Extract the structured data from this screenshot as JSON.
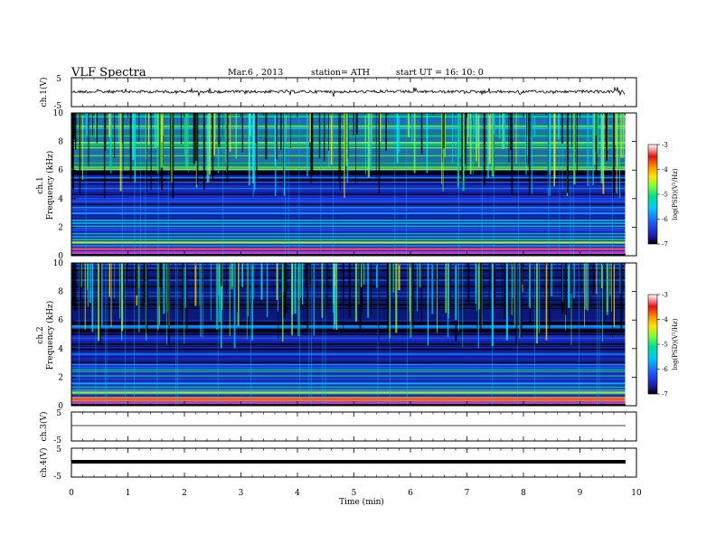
{
  "header": {
    "title": "VLF  Spectra",
    "date": "Mar.6  , 2013",
    "station": "station= ATH",
    "start": "start  UT  =   16: 10: 0"
  },
  "chart_data": [
    {
      "type": "line",
      "panel": "ch1-waveform",
      "ylabel": "ch.1(V)",
      "y_ticks": [
        "5",
        "-5"
      ],
      "ylim": [
        -5,
        5
      ],
      "approx_level": 0,
      "x_unit": "min"
    },
    {
      "type": "heatmap",
      "panel": "ch1-spectrogram",
      "ylabel_channel": "ch.1",
      "ylabel": "Frequency  (kHz)",
      "y_ticks": [
        "0",
        "2",
        "4",
        "6",
        "8",
        "10"
      ],
      "ylim": [
        0,
        10
      ],
      "xlim": [
        0,
        9.8
      ],
      "colorbar": {
        "label": "log(PSD)(V²/Hz)",
        "ticks": [
          "-3",
          "-4",
          "-5",
          "-6",
          "-7"
        ],
        "range": [
          -7,
          -3
        ],
        "colors": [
          "#000000",
          "#1a1ab0",
          "#1f5cff",
          "#00c8ff",
          "#00e08a",
          "#7cff3a",
          "#ffe600",
          "#ff8a00",
          "#e81010",
          "#ffffff"
        ]
      }
    },
    {
      "type": "heatmap",
      "panel": "ch2-spectrogram",
      "ylabel_channel": "ch.2",
      "ylabel": "Frequency  (kHz)",
      "y_ticks": [
        "0",
        "2",
        "4",
        "6",
        "8",
        "10"
      ],
      "ylim": [
        0,
        10
      ],
      "xlim": [
        0,
        9.8
      ],
      "colorbar": {
        "label": "log(PSD)(V²/Hz)",
        "ticks": [
          "-3",
          "-4",
          "-5",
          "-6",
          "-7"
        ],
        "range": [
          -7,
          -3
        ]
      }
    },
    {
      "type": "line",
      "panel": "ch3-waveform",
      "ylabel": "ch.3(V)",
      "y_ticks": [
        "5",
        "-5"
      ],
      "ylim": [
        -5,
        5
      ],
      "approx_level": 0
    },
    {
      "type": "line",
      "panel": "ch4-waveform",
      "ylabel": "ch.4(V)",
      "y_ticks": [
        "5",
        "-5"
      ],
      "ylim": [
        -5,
        5
      ],
      "approx_level": 0
    }
  ],
  "x_axis": {
    "label": "Time  (min)",
    "ticks": [
      "0",
      "1",
      "2",
      "3",
      "4",
      "5",
      "6",
      "7",
      "8",
      "9",
      "10"
    ],
    "xlim": [
      0,
      10
    ]
  }
}
